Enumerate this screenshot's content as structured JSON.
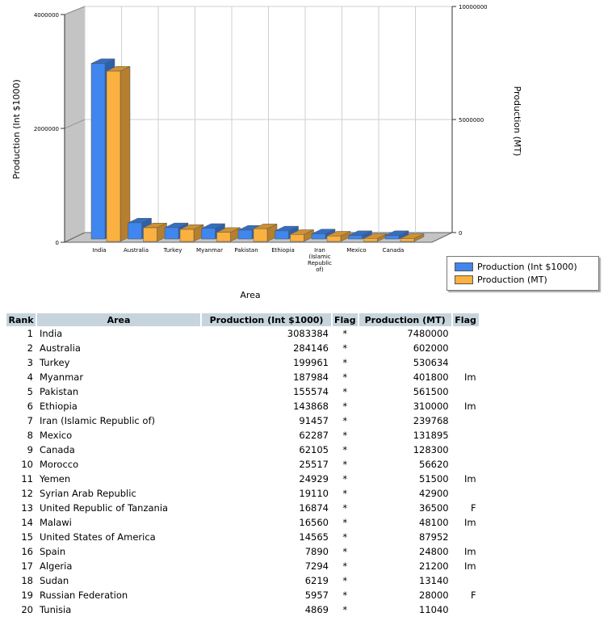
{
  "chart_data": {
    "type": "bar",
    "categories": [
      "India",
      "Australia",
      "Turkey",
      "Myanmar",
      "Pakistan",
      "Ethiopia",
      "Iran (Islamic Republic of)",
      "Mexico",
      "Canada"
    ],
    "category_labels": [
      [
        "India"
      ],
      [
        "Australia"
      ],
      [
        "Turkey"
      ],
      [
        "Myanmar"
      ],
      [
        "Pakistan"
      ],
      [
        "Ethiopia"
      ],
      [
        "Iran",
        "(Islamic",
        "Republic",
        "of)"
      ],
      [
        "Mexico"
      ],
      [
        "Canada"
      ]
    ],
    "series": [
      {
        "name": "Production (Int $1000)",
        "axis": "left",
        "color": "#3f86ee",
        "values": [
          3083384,
          284146,
          199961,
          187984,
          155574,
          143868,
          91457,
          62287,
          62105
        ]
      },
      {
        "name": "Production (MT)",
        "axis": "right",
        "color": "#fbb13f",
        "values": [
          7480000,
          602000,
          530634,
          401800,
          561500,
          310000,
          239768,
          131895,
          128300
        ]
      }
    ],
    "xlabel": "Area",
    "ylabel_left": "Production (Int $1000)",
    "ylabel_right": "Production (MT)",
    "ylim_left": [
      0,
      4000000
    ],
    "ylim_right": [
      0,
      10000000
    ],
    "yticks_left": [
      "0",
      "2000000",
      "4000000"
    ],
    "yticks_right": [
      "0",
      "5000000",
      "10000000"
    ],
    "grid": true,
    "legend": "bottom-right"
  },
  "table": {
    "headers": [
      "Rank",
      "Area",
      "Production (Int $1000)",
      "Flag",
      "Production (MT)",
      "Flag"
    ],
    "rows": [
      [
        "1",
        "India",
        "3083384",
        "*",
        "7480000",
        ""
      ],
      [
        "2",
        "Australia",
        "284146",
        "*",
        "602000",
        ""
      ],
      [
        "3",
        "Turkey",
        "199961",
        "*",
        "530634",
        ""
      ],
      [
        "4",
        "Myanmar",
        "187984",
        "*",
        "401800",
        "Im"
      ],
      [
        "5",
        "Pakistan",
        "155574",
        "*",
        "561500",
        ""
      ],
      [
        "6",
        "Ethiopia",
        "143868",
        "*",
        "310000",
        "Im"
      ],
      [
        "7",
        "Iran (Islamic Republic of)",
        "91457",
        "*",
        "239768",
        ""
      ],
      [
        "8",
        "Mexico",
        "62287",
        "*",
        "131895",
        ""
      ],
      [
        "9",
        "Canada",
        "62105",
        "*",
        "128300",
        ""
      ],
      [
        "10",
        "Morocco",
        "25517",
        "*",
        "56620",
        ""
      ],
      [
        "11",
        "Yemen",
        "24929",
        "*",
        "51500",
        "Im"
      ],
      [
        "12",
        "Syrian Arab Republic",
        "19110",
        "*",
        "42900",
        ""
      ],
      [
        "13",
        "United Republic of Tanzania",
        "16874",
        "*",
        "36500",
        "F"
      ],
      [
        "14",
        "Malawi",
        "16560",
        "*",
        "48100",
        "Im"
      ],
      [
        "15",
        "United States of America",
        "14565",
        "*",
        "87952",
        ""
      ],
      [
        "16",
        "Spain",
        "7890",
        "*",
        "24800",
        "Im"
      ],
      [
        "17",
        "Algeria",
        "7294",
        "*",
        "21200",
        "Im"
      ],
      [
        "18",
        "Sudan",
        "6219",
        "*",
        "13140",
        ""
      ],
      [
        "19",
        "Russian Federation",
        "5957",
        "*",
        "28000",
        "F"
      ],
      [
        "20",
        "Tunisia",
        "4869",
        "*",
        "11040",
        ""
      ]
    ]
  }
}
